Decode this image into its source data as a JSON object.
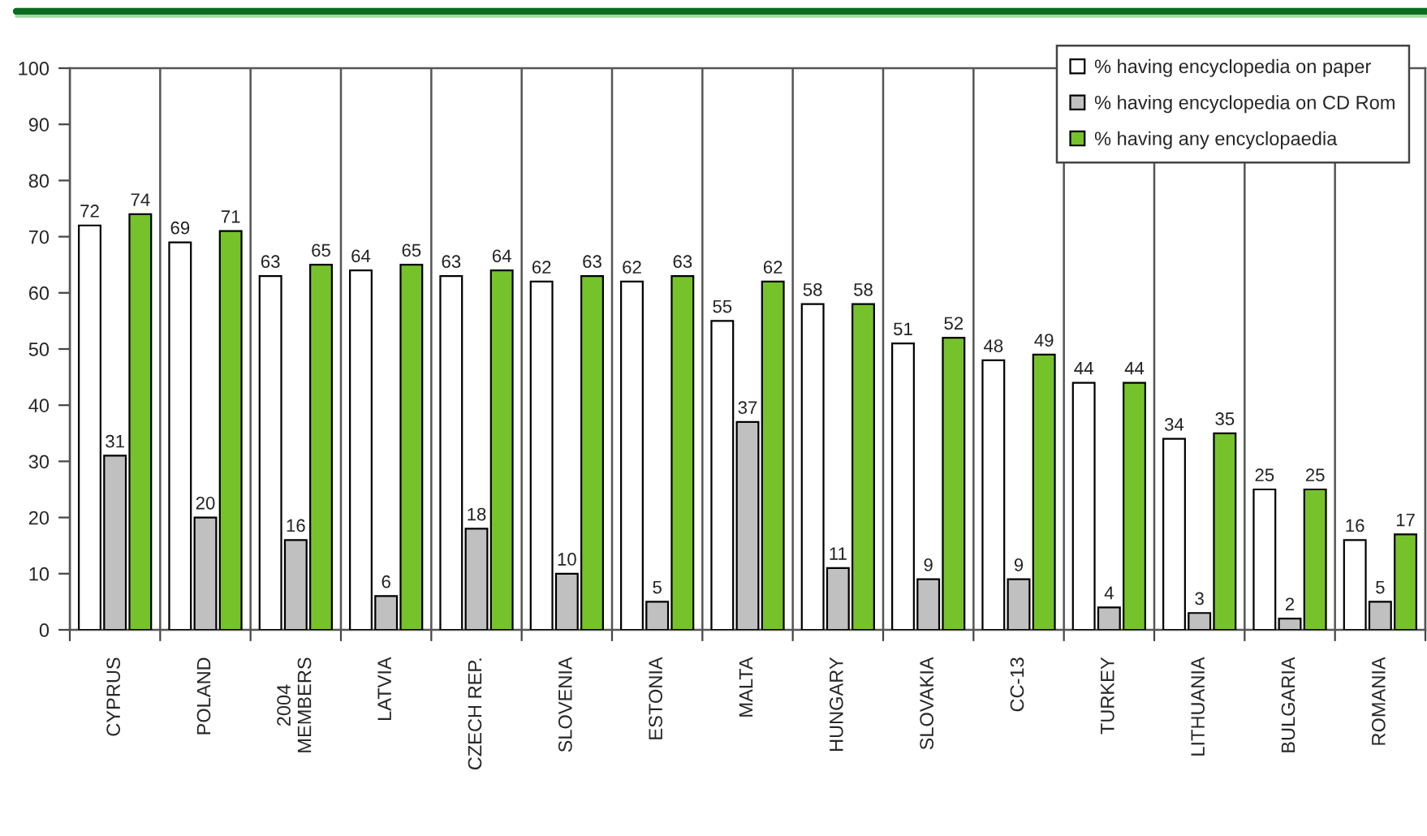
{
  "chart_data": {
    "type": "bar",
    "categories": [
      "CYPRUS",
      "POLAND",
      "2004\nMEMBERS",
      "LATVIA",
      "CZECH REP.",
      "SLOVENIA",
      "ESTONIA",
      "MALTA",
      "HUNGARY",
      "SLOVAKIA",
      "CC-13",
      "TURKEY",
      "LITHUANIA",
      "BULGARIA",
      "ROMANIA"
    ],
    "series": [
      {
        "name": "% having encyclopedia on paper",
        "color": "#ffffff",
        "values": [
          72,
          69,
          63,
          64,
          63,
          62,
          62,
          55,
          58,
          51,
          48,
          44,
          34,
          25,
          16
        ]
      },
      {
        "name": "% having encyclopedia on CD Rom",
        "color": "#c0c0c0",
        "values": [
          31,
          20,
          16,
          6,
          18,
          10,
          5,
          37,
          11,
          9,
          9,
          4,
          3,
          2,
          5
        ]
      },
      {
        "name": "% having any encyclopaedia",
        "color": "#76c22b",
        "values": [
          74,
          71,
          65,
          65,
          64,
          63,
          63,
          62,
          58,
          52,
          49,
          44,
          35,
          25,
          17
        ]
      }
    ],
    "ylim": [
      0,
      100
    ],
    "yticks": [
      0,
      10,
      20,
      30,
      40,
      50,
      60,
      70,
      80,
      90,
      100
    ],
    "grid": "x",
    "legend": "top right",
    "data_labels": true
  }
}
